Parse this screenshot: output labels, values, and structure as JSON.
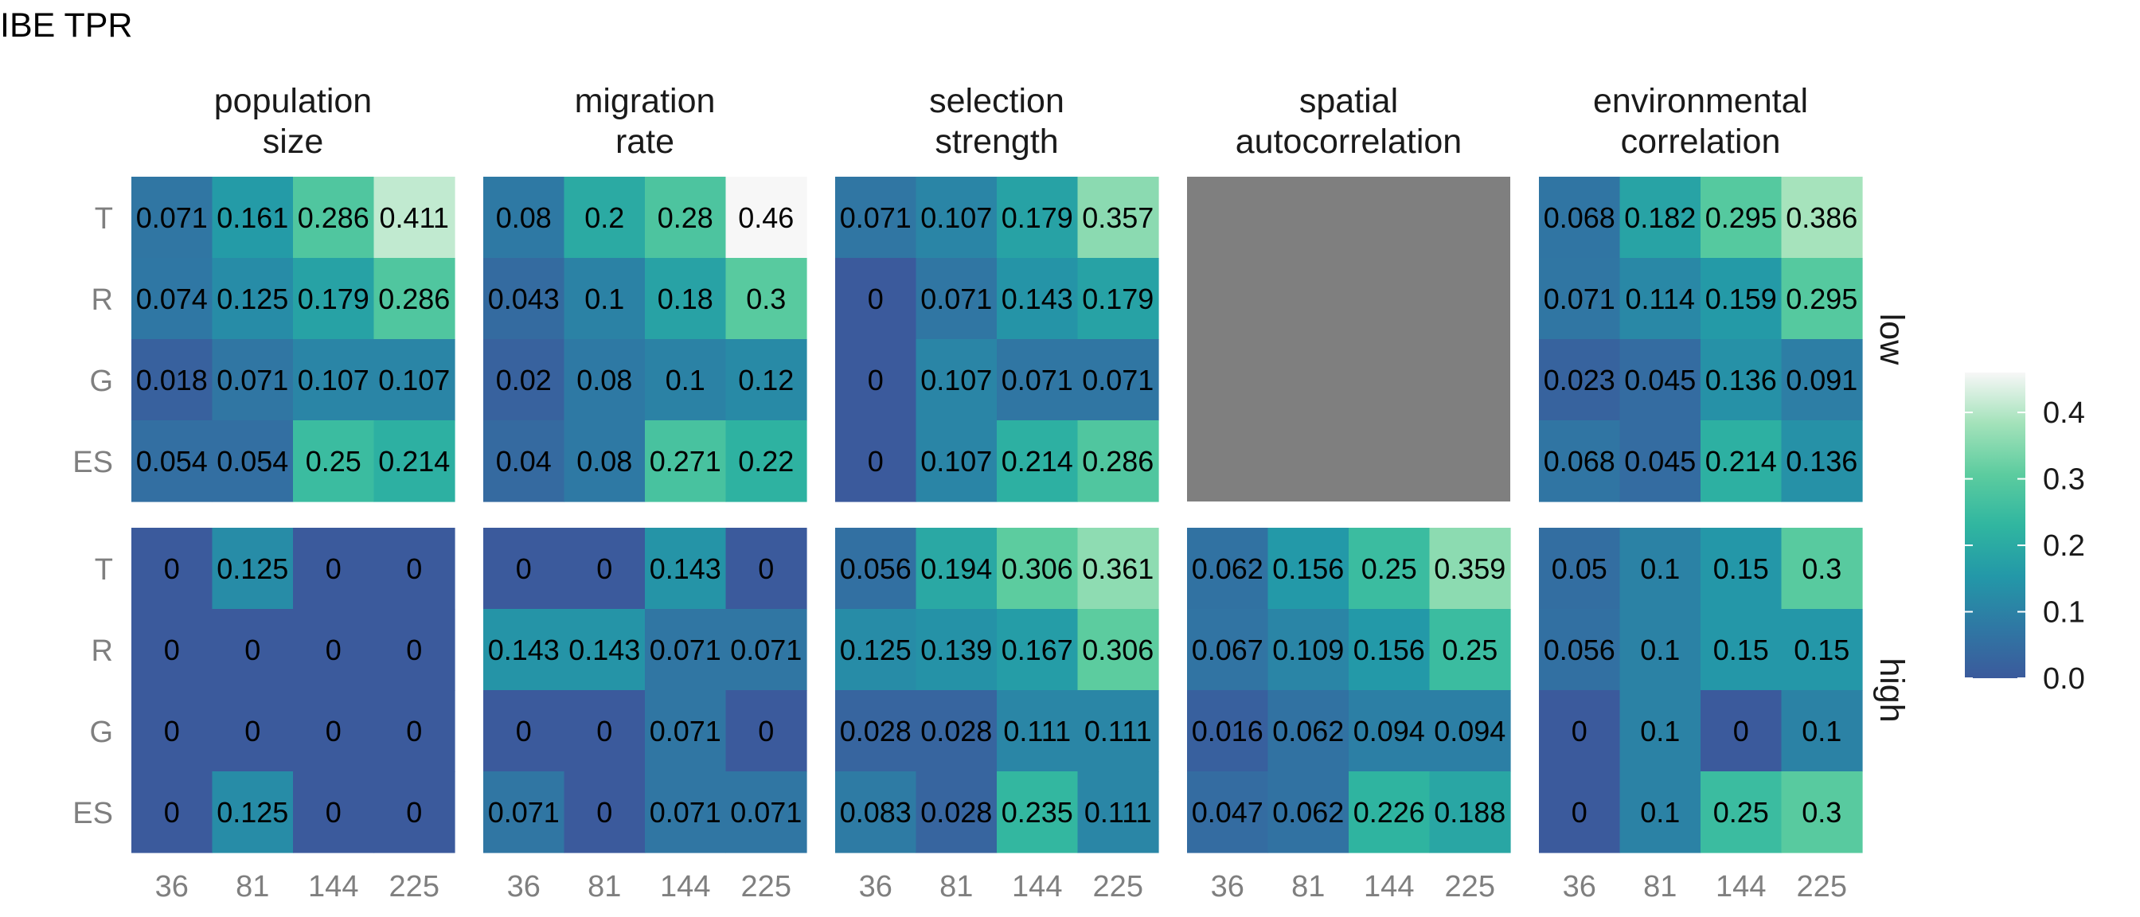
{
  "chart_data": {
    "type": "heatmap",
    "title": "IBE TPR",
    "xlabel": "",
    "ylabel": "",
    "x_categories": [
      "36",
      "81",
      "144",
      "225"
    ],
    "y_categories": [
      "T",
      "R",
      "G",
      "ES"
    ],
    "panel_columns": [
      "population\nsize",
      "migration\nrate",
      "selection\nstrength",
      "spatial\nautocorrelation",
      "environmental\ncorrelation"
    ],
    "panel_rows": [
      "low",
      "high"
    ],
    "panels": [
      {
        "col": 0,
        "row": 0,
        "values": [
          [
            "0.071",
            "0.161",
            "0.286",
            "0.411"
          ],
          [
            "0.074",
            "0.125",
            "0.179",
            "0.286"
          ],
          [
            "0.018",
            "0.071",
            "0.107",
            "0.107"
          ],
          [
            "0.054",
            "0.054",
            "0.25",
            "0.214"
          ]
        ]
      },
      {
        "col": 1,
        "row": 0,
        "values": [
          [
            "0.08",
            "0.2",
            "0.28",
            "0.46"
          ],
          [
            "0.043",
            "0.1",
            "0.18",
            "0.3"
          ],
          [
            "0.02",
            "0.08",
            "0.1",
            "0.12"
          ],
          [
            "0.04",
            "0.08",
            "0.271",
            "0.22"
          ]
        ]
      },
      {
        "col": 2,
        "row": 0,
        "values": [
          [
            "0.071",
            "0.107",
            "0.179",
            "0.357"
          ],
          [
            "0",
            "0.071",
            "0.143",
            "0.179"
          ],
          [
            "0",
            "0.107",
            "0.071",
            "0.071"
          ],
          [
            "0",
            "0.107",
            "0.214",
            "0.286"
          ]
        ]
      },
      {
        "col": 3,
        "row": 0,
        "values": null
      },
      {
        "col": 4,
        "row": 0,
        "values": [
          [
            "0.068",
            "0.182",
            "0.295",
            "0.386"
          ],
          [
            "0.071",
            "0.114",
            "0.159",
            "0.295"
          ],
          [
            "0.023",
            "0.045",
            "0.136",
            "0.091"
          ],
          [
            "0.068",
            "0.045",
            "0.214",
            "0.136"
          ]
        ]
      },
      {
        "col": 0,
        "row": 1,
        "values": [
          [
            "0",
            "0.125",
            "0",
            "0"
          ],
          [
            "0",
            "0",
            "0",
            "0"
          ],
          [
            "0",
            "0",
            "0",
            "0"
          ],
          [
            "0",
            "0.125",
            "0",
            "0"
          ]
        ]
      },
      {
        "col": 1,
        "row": 1,
        "values": [
          [
            "0",
            "0",
            "0.143",
            "0"
          ],
          [
            "0.143",
            "0.143",
            "0.071",
            "0.071"
          ],
          [
            "0",
            "0",
            "0.071",
            "0"
          ],
          [
            "0.071",
            "0",
            "0.071",
            "0.071"
          ]
        ]
      },
      {
        "col": 2,
        "row": 1,
        "values": [
          [
            "0.056",
            "0.194",
            "0.306",
            "0.361"
          ],
          [
            "0.125",
            "0.139",
            "0.167",
            "0.306"
          ],
          [
            "0.028",
            "0.028",
            "0.111",
            "0.111"
          ],
          [
            "0.083",
            "0.028",
            "0.235",
            "0.111"
          ]
        ]
      },
      {
        "col": 3,
        "row": 1,
        "values": [
          [
            "0.062",
            "0.156",
            "0.25",
            "0.359"
          ],
          [
            "0.067",
            "0.109",
            "0.156",
            "0.25"
          ],
          [
            "0.016",
            "0.062",
            "0.094",
            "0.094"
          ],
          [
            "0.047",
            "0.062",
            "0.226",
            "0.188"
          ]
        ]
      },
      {
        "col": 4,
        "row": 1,
        "values": [
          [
            "0.05",
            "0.1",
            "0.15",
            "0.3"
          ],
          [
            "0.056",
            "0.1",
            "0.15",
            "0.15"
          ],
          [
            "0",
            "0.1",
            "0",
            "0.1"
          ],
          [
            "0",
            "0.1",
            "0.25",
            "0.3"
          ]
        ]
      }
    ],
    "color_scale": {
      "domain": [
        0,
        0.46
      ],
      "stops": [
        "#3b5a9c",
        "#2f78a4",
        "#2398a8",
        "#30b6a0",
        "#5ccc9f",
        "#a3e2ba",
        "#f7f7f7"
      ],
      "missing_color": "#7f7f7f",
      "ticks": [
        "0.0",
        "0.1",
        "0.2",
        "0.3",
        "0.4"
      ]
    },
    "legend": "right",
    "grid": false
  }
}
